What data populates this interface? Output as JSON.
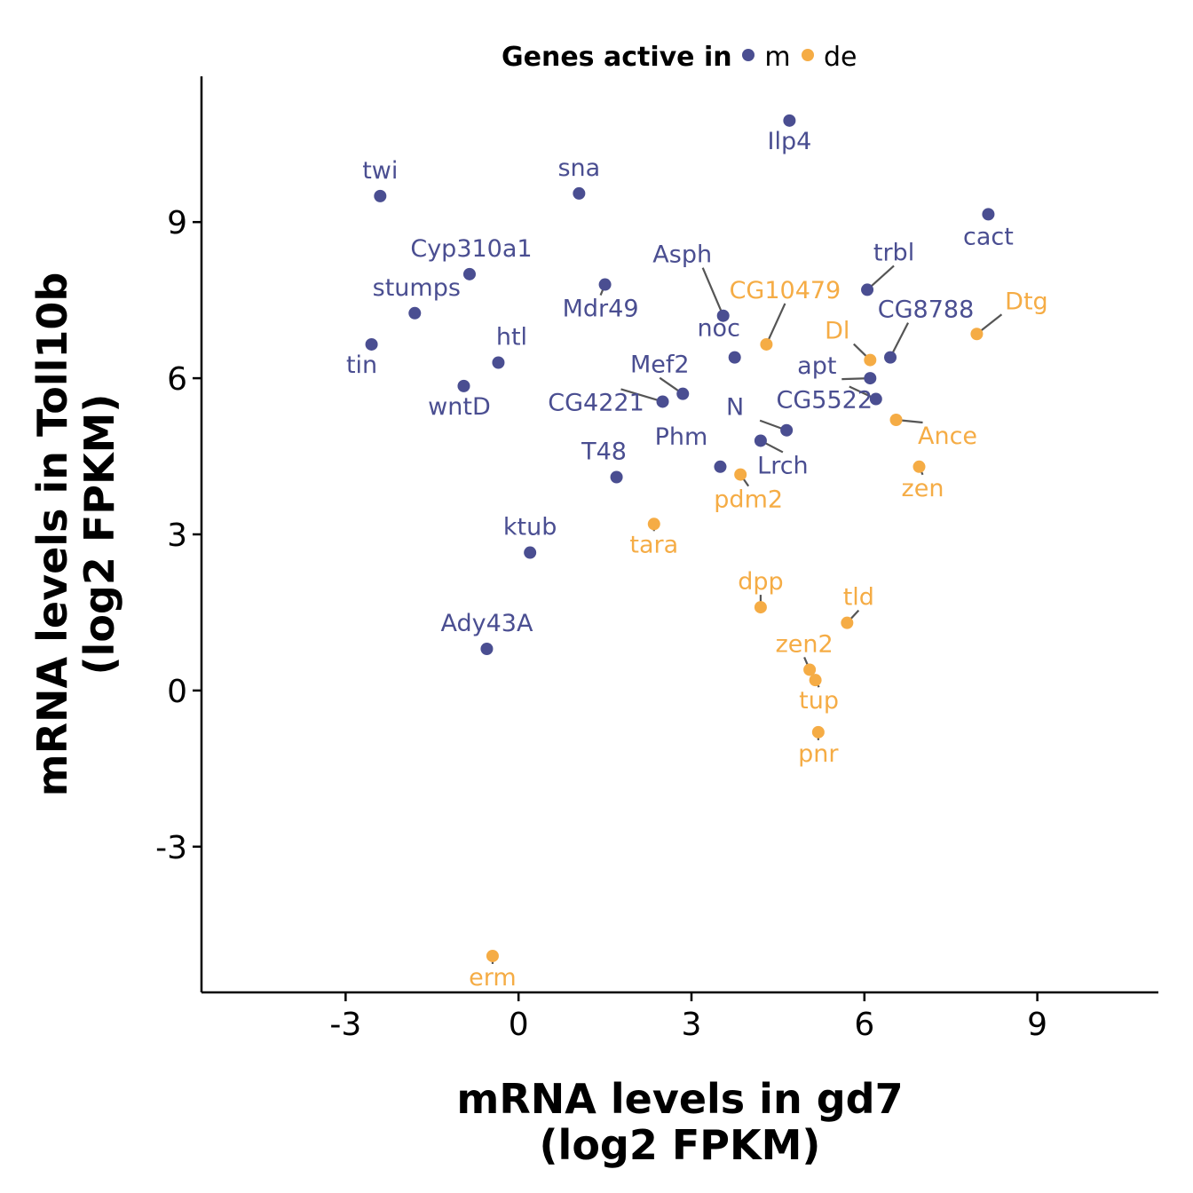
{
  "chart_data": {
    "type": "scatter",
    "xlabel": [
      "mRNA levels in gd7",
      "(log2 FPKM)"
    ],
    "ylabel": [
      "mRNA levels in Toll10b",
      "(log2 FPKM)"
    ],
    "xlim": [
      -5.5,
      11.1
    ],
    "ylim": [
      -5.8,
      11.8
    ],
    "xticks": [
      -3,
      0,
      3,
      6,
      9
    ],
    "yticks": [
      -3,
      0,
      3,
      6,
      9
    ],
    "grid": false,
    "legend": {
      "title": "Genes active in",
      "position": "top",
      "entries": [
        {
          "key": "m",
          "label": "m",
          "color": "#4a4e91"
        },
        {
          "key": "de",
          "label": "de",
          "color": "#f5ac45"
        }
      ]
    },
    "points": [
      {
        "label": "twi",
        "x": -2.4,
        "y": 9.5,
        "group": "m"
      },
      {
        "label": "sna",
        "x": 1.05,
        "y": 9.55,
        "group": "m"
      },
      {
        "label": "Ilp4",
        "x": 4.7,
        "y": 10.95,
        "group": "m"
      },
      {
        "label": "cact",
        "x": 8.15,
        "y": 9.15,
        "group": "m"
      },
      {
        "label": "Cyp310a1",
        "x": -0.85,
        "y": 8.0,
        "group": "m"
      },
      {
        "label": "stumps",
        "x": -1.8,
        "y": 7.25,
        "group": "m"
      },
      {
        "label": "Mdr49",
        "x": 1.5,
        "y": 7.8,
        "group": "m"
      },
      {
        "label": "Asph",
        "x": 3.55,
        "y": 7.2,
        "group": "m"
      },
      {
        "label": "trbl",
        "x": 6.05,
        "y": 7.7,
        "group": "m"
      },
      {
        "label": "CG10479",
        "x": 4.3,
        "y": 6.65,
        "group": "de"
      },
      {
        "label": "Dtg",
        "x": 7.95,
        "y": 6.85,
        "group": "de"
      },
      {
        "label": "CG8788",
        "x": 6.45,
        "y": 6.4,
        "group": "m"
      },
      {
        "label": "Dl",
        "x": 6.1,
        "y": 6.35,
        "group": "de"
      },
      {
        "label": "tin",
        "x": -2.55,
        "y": 6.65,
        "group": "m"
      },
      {
        "label": "htl",
        "x": -0.35,
        "y": 6.3,
        "group": "m"
      },
      {
        "label": "wntD",
        "x": -0.95,
        "y": 5.85,
        "group": "m"
      },
      {
        "label": "noc",
        "x": 3.75,
        "y": 6.4,
        "group": "m"
      },
      {
        "label": "Mef2",
        "x": 2.85,
        "y": 5.7,
        "group": "m"
      },
      {
        "label": "CG4221",
        "x": 2.5,
        "y": 5.55,
        "group": "m"
      },
      {
        "label": "apt",
        "x": 6.1,
        "y": 6.0,
        "group": "m"
      },
      {
        "label": "CG5522",
        "x": 6.2,
        "y": 5.6,
        "group": "m"
      },
      {
        "label": "N",
        "x": 4.65,
        "y": 5.0,
        "group": "m"
      },
      {
        "label": "Ance",
        "x": 6.55,
        "y": 5.2,
        "group": "de"
      },
      {
        "label": "Lrch",
        "x": 4.2,
        "y": 4.8,
        "group": "m"
      },
      {
        "label": "Phm",
        "x": 3.5,
        "y": 4.3,
        "group": "m"
      },
      {
        "label": "T48",
        "x": 1.7,
        "y": 4.1,
        "group": "m"
      },
      {
        "label": "pdm2",
        "x": 3.85,
        "y": 4.15,
        "group": "de"
      },
      {
        "label": "zen",
        "x": 6.95,
        "y": 4.3,
        "group": "de"
      },
      {
        "label": "tara",
        "x": 2.35,
        "y": 3.2,
        "group": "de"
      },
      {
        "label": "ktub",
        "x": 0.2,
        "y": 2.65,
        "group": "m"
      },
      {
        "label": "dpp",
        "x": 4.2,
        "y": 1.6,
        "group": "de"
      },
      {
        "label": "tld",
        "x": 5.7,
        "y": 1.3,
        "group": "de"
      },
      {
        "label": "Ady43A",
        "x": -0.55,
        "y": 0.8,
        "group": "m"
      },
      {
        "label": "zen2",
        "x": 5.05,
        "y": 0.4,
        "group": "de"
      },
      {
        "label": "tup",
        "x": 5.15,
        "y": 0.2,
        "group": "de"
      },
      {
        "label": "pnr",
        "x": 5.2,
        "y": -0.8,
        "group": "de"
      },
      {
        "label": "erm",
        "x": -0.45,
        "y": -5.1,
        "group": "de"
      }
    ]
  }
}
